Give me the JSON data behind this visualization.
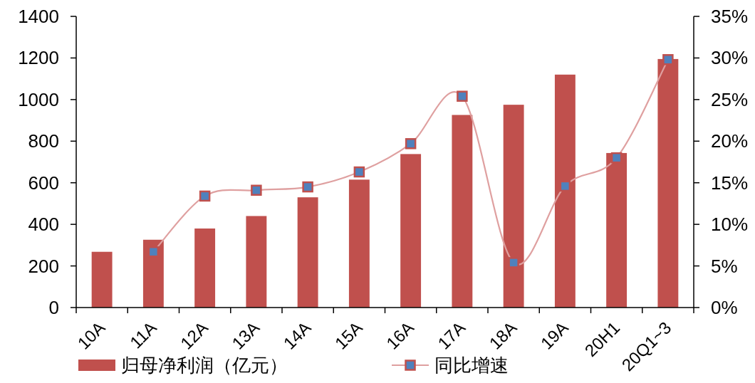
{
  "chart_data": {
    "type": "bar",
    "categories": [
      "10A",
      "11A",
      "12A",
      "13A",
      "14A",
      "15A",
      "16A",
      "17A",
      "18A",
      "19A",
      "20H1",
      "20Q1~3"
    ],
    "series": [
      {
        "name": "归母净利润（亿元）",
        "color": "#c0504d",
        "values": [
          268,
          326,
          380,
          440,
          530,
          615,
          738,
          926,
          975,
          1120,
          743,
          1195
        ]
      },
      {
        "name": "同比增速",
        "type": "line",
        "axis": "y2",
        "color": "#dfa0a0",
        "colors": [
          null,
          "#4f81bd",
          "#4f81bd",
          "#4f81bd",
          "#4f81bd",
          "#4f81bd",
          "#4f81bd",
          "#4f81bd",
          "#4f81bd",
          "#4f81bd",
          "#4f81bd",
          "#4f81bd"
        ],
        "marker": "square",
        "values": [
          null,
          6.7,
          13.4,
          14.1,
          14.5,
          16.3,
          19.7,
          25.4,
          5.4,
          14.6,
          18.0,
          29.8
        ]
      }
    ],
    "ylim": [
      0,
      1400
    ],
    "yticks": [
      0,
      200,
      400,
      600,
      800,
      1000,
      1200,
      1400
    ],
    "y2lim": [
      0,
      35
    ],
    "y2ticks": [
      {
        "value": 0,
        "label": "0%"
      },
      {
        "value": 5,
        "label": "5%"
      },
      {
        "value": 10,
        "label": "10%"
      },
      {
        "value": 15,
        "label": "15%"
      },
      {
        "value": 20,
        "label": "20%"
      },
      {
        "value": 25,
        "label": "25%"
      },
      {
        "value": 30,
        "label": "30%"
      },
      {
        "value": 35,
        "label": "35%"
      }
    ],
    "legend": "bottom"
  }
}
